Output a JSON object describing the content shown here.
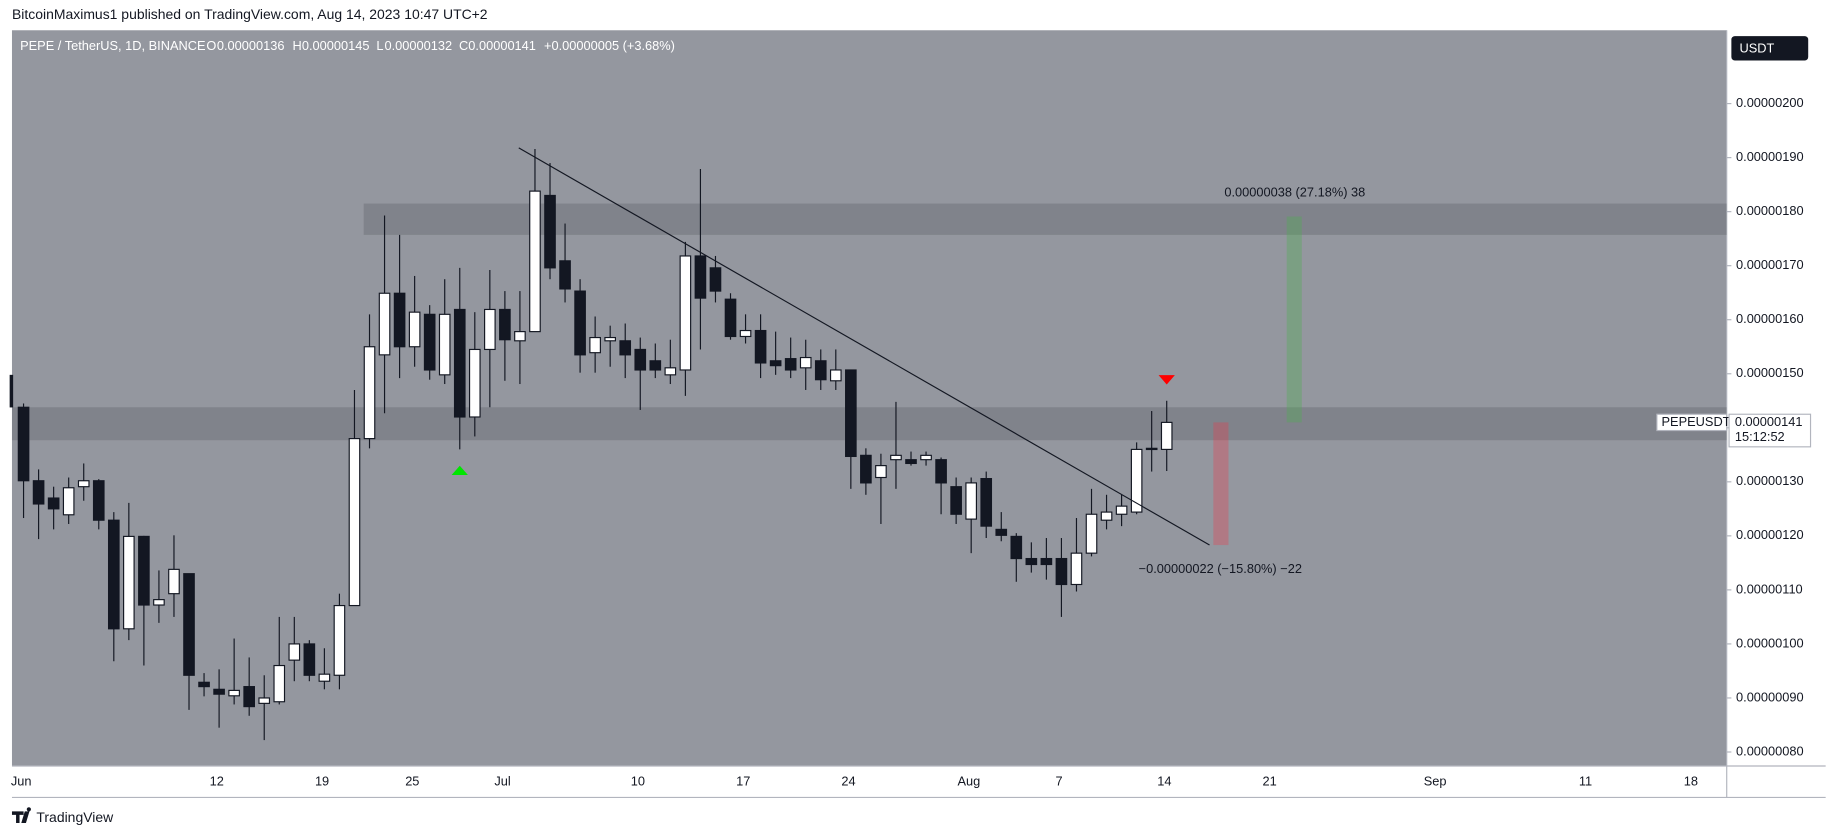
{
  "publisher_line": "BitcoinMaximus1 published on TradingView.com, Aug 14, 2023 10:47 UTC+2",
  "footer": "TradingView",
  "chart_data": {
    "type": "candlestick",
    "title": "PEPE / TetherUS, 1D, BINANCE",
    "legend": {
      "o_key": "O",
      "open": "0.00000136",
      "h_key": "H",
      "high": "0.00000145",
      "l_key": "L",
      "low": "0.00000132",
      "c_key": "C",
      "close": "0.00000141",
      "change": "+0.00000005 (+3.68%)"
    },
    "currency": "USDT",
    "categories": [
      "Jun",
      null,
      null,
      null,
      null,
      null,
      null,
      null,
      null,
      null,
      null,
      null,
      null,
      "12",
      null,
      null,
      null,
      null,
      null,
      null,
      "19",
      null,
      null,
      null,
      null,
      null,
      "25",
      null,
      null,
      null,
      null,
      null,
      "Jul",
      null,
      null,
      null,
      null,
      null,
      null,
      null,
      null,
      "10",
      null,
      null,
      null,
      null,
      null,
      null,
      "17",
      null,
      null,
      null,
      null,
      null,
      null,
      "24",
      null,
      null,
      null,
      null,
      null,
      null,
      null,
      "Aug",
      null,
      null,
      null,
      null,
      null,
      "7",
      null,
      null,
      null,
      null,
      null,
      null,
      "14",
      null,
      null,
      null,
      null,
      null,
      null,
      "21",
      null,
      null,
      null,
      null,
      null,
      null,
      null,
      null,
      null,
      null,
      "Sep",
      null,
      null,
      null,
      null,
      null,
      null,
      null,
      null,
      null,
      "11",
      null,
      null,
      null,
      null,
      null,
      null,
      "18",
      null,
      null
    ],
    "open": [
      1.438e-06,
      1.302e-06,
      1.27e-06,
      1.239e-06,
      1.291e-06,
      1.302e-06,
      1.229e-06,
      1.028e-06,
      1.199e-06,
      1.072e-06,
      1.093e-06,
      1.13e-06,
      9.29e-07,
      9.16e-07,
      9.04e-07,
      9.21e-07,
      8.9e-07,
      8.93e-07,
      9.7e-07,
      1e-06,
      9.31e-07,
      9.42e-07,
      1.071e-06,
      1.38e-06,
      1.535e-06,
      1.649e-06,
      1.55e-06,
      1.61e-06,
      1.498e-06,
      1.619e-06,
      1.42e-06,
      1.545e-06,
      1.619e-06,
      1.561e-06,
      1.578e-06,
      1.83e-06,
      1.709e-06,
      1.653e-06,
      1.539e-06,
      1.561e-06,
      1.561e-06,
      1.545e-06,
      1.524e-06,
      1.498e-06,
      1.507e-06,
      1.718e-06,
      1.696e-06,
      1.638e-06,
      1.569e-06,
      1.58e-06,
      1.524e-06,
      1.528e-06,
      1.511e-06,
      1.524e-06,
      1.487e-06,
      1.507e-06,
      1.349e-06,
      1.308e-06,
      1.341e-06,
      1.341e-06,
      1.341e-06,
      1.341e-06,
      1.291e-06,
      1.231e-06,
      1.306e-06,
      1.212e-06,
      1.199e-06,
      1.158e-06,
      1.158e-06,
      1.158e-06,
      1.11e-06,
      1.168e-06,
      1.229e-06,
      1.24e-06,
      1.244e-06,
      1.36e-06,
      1.36e-06,
      null,
      null,
      null,
      null,
      null,
      null,
      null,
      null,
      null,
      null,
      null,
      null,
      null,
      null,
      null,
      null,
      null,
      null,
      null,
      null,
      null,
      null,
      null,
      null,
      null,
      null,
      null,
      null,
      null,
      null,
      null,
      null,
      null,
      null,
      null,
      null,
      null
    ],
    "high": [
      1.445e-06,
      1.323e-06,
      1.291e-06,
      1.308e-06,
      1.334e-06,
      1.305e-06,
      1.244e-06,
      1.261e-06,
      1.2e-06,
      1.136e-06,
      1.201e-06,
      1.13e-06,
      9.46e-07,
      9.53e-07,
      1.01e-06,
      9.75e-07,
      9.42e-07,
      1.05e-06,
      1.05e-06,
      1.007e-06,
      9.92e-07,
      1.093e-06,
      1.47e-06,
      1.61e-06,
      1.793e-06,
      1.757e-06,
      1.681e-06,
      1.627e-06,
      1.675e-06,
      1.696e-06,
      1.614e-06,
      1.692e-06,
      1.653e-06,
      1.653e-06,
      1.916e-06,
      1.89e-06,
      1.778e-06,
      1.675e-06,
      1.606e-06,
      1.589e-06,
      1.593e-06,
      1.567e-06,
      1.556e-06,
      1.563e-06,
      1.744e-06,
      1.879e-06,
      1.718e-06,
      1.649e-06,
      1.61e-06,
      1.61e-06,
      1.578e-06,
      1.567e-06,
      1.563e-06,
      1.545e-06,
      1.545e-06,
      1.507e-06,
      1.362e-06,
      1.352e-06,
      1.448e-06,
      1.356e-06,
      1.356e-06,
      1.345e-06,
      1.308e-06,
      1.308e-06,
      1.319e-06,
      1.244e-06,
      1.205e-06,
      1.188e-06,
      1.196e-06,
      1.196e-06,
      1.233e-06,
      1.287e-06,
      1.276e-06,
      1.276e-06,
      1.373e-06,
      1.431e-06,
      1.45e-06,
      null,
      null,
      null,
      null,
      null,
      null,
      null,
      null,
      null,
      null,
      null,
      null,
      null,
      null,
      null,
      null,
      null,
      null,
      null,
      null,
      null,
      null,
      null,
      null,
      null,
      null,
      null,
      null,
      null,
      null,
      null,
      null,
      null,
      null,
      null,
      null,
      null
    ],
    "low": [
      1.233e-06,
      1.194e-06,
      1.212e-06,
      1.222e-06,
      1.265e-06,
      1.212e-06,
      9.68e-07,
      1.007e-06,
      9.6e-07,
      1.039e-06,
      1.05e-06,
      8.78e-07,
      9.03e-07,
      8.45e-07,
      8.88e-07,
      8.67e-07,
      8.22e-07,
      8.88e-07,
      9.31e-07,
      9.31e-07,
      9.16e-07,
      9.16e-07,
      1.071e-06,
      1.362e-06,
      1.427e-06,
      1.492e-06,
      1.513e-06,
      1.489e-06,
      1.481e-06,
      1.36e-06,
      1.384e-06,
      1.438e-06,
      1.487e-06,
      1.481e-06,
      1.578e-06,
      1.675e-06,
      1.632e-06,
      1.502e-06,
      1.502e-06,
      1.513e-06,
      1.492e-06,
      1.433e-06,
      1.492e-06,
      1.481e-06,
      1.459e-06,
      1.545e-06,
      1.632e-06,
      1.563e-06,
      1.556e-06,
      1.492e-06,
      1.498e-06,
      1.492e-06,
      1.47e-06,
      1.47e-06,
      1.47e-06,
      1.287e-06,
      1.276e-06,
      1.222e-06,
      1.287e-06,
      1.33e-06,
      1.33e-06,
      1.24e-06,
      1.222e-06,
      1.168e-06,
      1.196e-06,
      1.19e-06,
      1.115e-06,
      1.132e-06,
      1.119e-06,
      1.05e-06,
      1.097e-06,
      1.162e-06,
      1.212e-06,
      1.218e-06,
      1.24e-06,
      1.319e-06,
      1.32e-06,
      null,
      null,
      null,
      null,
      null,
      null,
      null,
      null,
      null,
      null,
      null,
      null,
      null,
      null,
      null,
      null,
      null,
      null,
      null,
      null,
      null,
      null,
      null,
      null,
      null,
      null,
      null,
      null,
      null,
      null,
      null,
      null,
      null,
      null,
      null,
      null,
      null
    ],
    "close": [
      1.302e-06,
      1.259e-06,
      1.25e-06,
      1.289e-06,
      1.302e-06,
      1.229e-06,
      1.028e-06,
      1.199e-06,
      1.072e-06,
      1.082e-06,
      1.138e-06,
      9.42e-07,
      9.21e-07,
      9.07e-07,
      9.14e-07,
      8.84e-07,
      9e-07,
      9.6e-07,
      1e-06,
      9.42e-07,
      9.44e-07,
      1.071e-06,
      1.38e-06,
      1.55e-06,
      1.649e-06,
      1.55e-06,
      1.614e-06,
      1.507e-06,
      1.61e-06,
      1.42e-06,
      1.545e-06,
      1.619e-06,
      1.563e-06,
      1.578e-06,
      1.838e-06,
      1.696e-06,
      1.657e-06,
      1.535e-06,
      1.567e-06,
      1.567e-06,
      1.535e-06,
      1.507e-06,
      1.507e-06,
      1.511e-06,
      1.718e-06,
      1.64e-06,
      1.653e-06,
      1.569e-06,
      1.58e-06,
      1.52e-06,
      1.515e-06,
      1.507e-06,
      1.53e-06,
      1.489e-06,
      1.507e-06,
      1.347e-06,
      1.298e-06,
      1.33e-06,
      1.349e-06,
      1.334e-06,
      1.349e-06,
      1.298e-06,
      1.24e-06,
      1.298e-06,
      1.218e-06,
      1.201e-06,
      1.158e-06,
      1.147e-06,
      1.147e-06,
      1.11e-06,
      1.168e-06,
      1.24e-06,
      1.244e-06,
      1.255e-06,
      1.36e-06,
      1.362e-06,
      1.41e-06,
      null,
      null,
      null,
      null,
      null,
      null,
      null,
      null,
      null,
      null,
      null,
      null,
      null,
      null,
      null,
      null,
      null,
      null,
      null,
      null,
      null,
      null,
      null,
      null,
      null,
      null,
      null,
      null,
      null,
      null,
      null,
      null,
      null,
      null,
      null,
      null,
      null
    ],
    "up_color": "#ffffff",
    "down_color": "#131722",
    "ylim": [
      7.741e-07,
      2.1357e-06
    ],
    "yticks": [
      {
        "value": 8e-07,
        "label": "0.00000080"
      },
      {
        "value": 9e-07,
        "label": "0.00000090"
      },
      {
        "value": 1e-06,
        "label": "0.00000100"
      },
      {
        "value": 1.1e-06,
        "label": "0.00000110"
      },
      {
        "value": 1.2e-06,
        "label": "0.00000120"
      },
      {
        "value": 1.3e-06,
        "label": "0.00000130"
      },
      {
        "value": 1.4e-06,
        "label": "0.00000140"
      },
      {
        "value": 1.5e-06,
        "label": "0.00000150"
      },
      {
        "value": 1.6e-06,
        "label": "0.00000160"
      },
      {
        "value": 1.7e-06,
        "label": "0.00000170"
      },
      {
        "value": 1.8e-06,
        "label": "0.00000180"
      },
      {
        "value": 1.9e-06,
        "label": "0.00000190"
      },
      {
        "value": 2e-06,
        "label": "0.00000200"
      }
    ],
    "grid": false,
    "zones": [
      {
        "top": 1.815e-06,
        "bottom": 1.757e-06
      },
      {
        "top": 1.438e-06,
        "bottom": 1.377e-06
      }
    ],
    "trendline": {
      "start": 1.918e-06,
      "end": 1.183e-06
    },
    "position": {
      "target": 1.791e-06,
      "entry": 1.41e-06,
      "stop": 1.183e-06,
      "profit_label": "0.00000038 (27.18%) 38",
      "loss_label": "−0.00000022 (−15.80%) −22"
    },
    "last_price": {
      "symbol": "PEPEUSDT",
      "value": 1.41e-06,
      "label": "0.00000141",
      "countdown": "15:12:52"
    }
  }
}
